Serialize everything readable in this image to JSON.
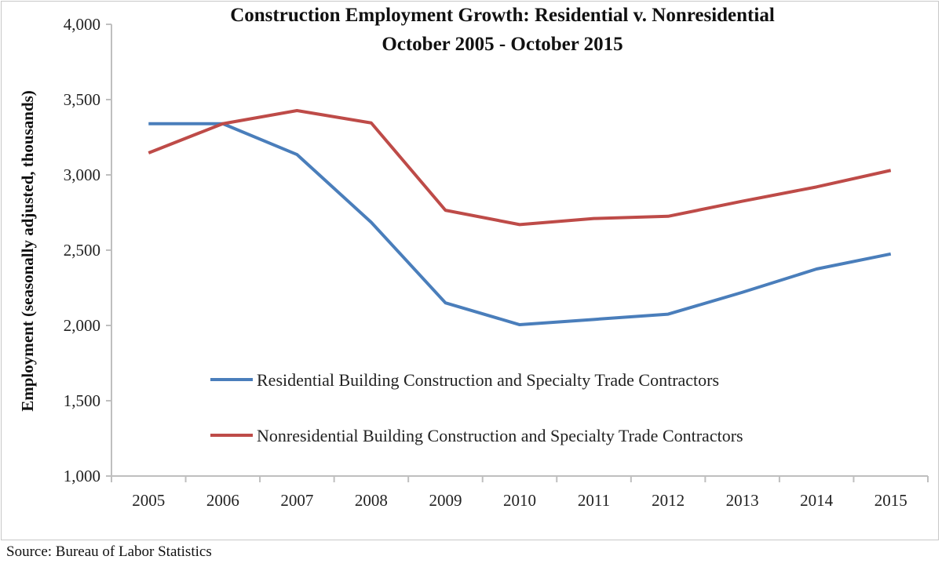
{
  "chart_data": {
    "type": "line",
    "title": "Construction Employment Growth:  Residential v. Nonresidential",
    "subtitle": "October 2005 - October 2015",
    "xlabel": "",
    "ylabel": "Employment (seasonally adjusted, thousands)",
    "ylim": [
      1000,
      4000
    ],
    "yticks": [
      "1,000",
      "1,500",
      "2,000",
      "2,500",
      "3,000",
      "3,500",
      "4,000"
    ],
    "ytick_values": [
      1000,
      1500,
      2000,
      2500,
      3000,
      3500,
      4000
    ],
    "categories": [
      "2005",
      "2006",
      "2007",
      "2008",
      "2009",
      "2010",
      "2011",
      "2012",
      "2013",
      "2014",
      "2015"
    ],
    "grid": false,
    "legend_placement": "center",
    "series": [
      {
        "name": "Residential Building Construction and Specialty Trade Contractors",
        "color": "#4a7ebb",
        "values": [
          3340,
          3340,
          3135,
          2685,
          2150,
          2005,
          2040,
          2075,
          2220,
          2375,
          2475
        ]
      },
      {
        "name": "Nonresidential Building Construction and Specialty Trade Contractors",
        "color": "#be4b48",
        "values": [
          3146,
          3340,
          3427,
          3345,
          2765,
          2670,
          2710,
          2725,
          2825,
          2920,
          3030
        ]
      }
    ]
  },
  "source": "Source:  Bureau of Labor Statistics"
}
